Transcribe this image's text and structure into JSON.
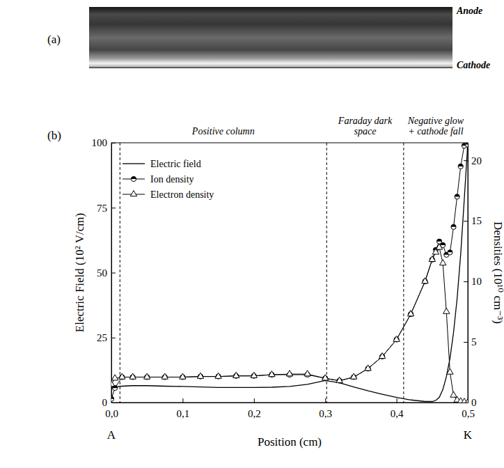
{
  "image_panel": {
    "letter": "(a)",
    "top_label": "Anode",
    "bottom_label": "Cathode"
  },
  "chart_panel": {
    "letter": "(b)"
  },
  "chart_data": {
    "type": "line",
    "xlabel": "Position (cm)",
    "ylabel": "Electric Field (10² V/cm)",
    "y2label": "Densities (10¹⁰ cm⁻³)",
    "xlim": [
      0,
      0.5
    ],
    "xticks": [
      {
        "value": 0,
        "label": "0,0"
      },
      {
        "value": 0.1,
        "label": "0,1"
      },
      {
        "value": 0.2,
        "label": "0,2"
      },
      {
        "value": 0.3,
        "label": "0,3"
      },
      {
        "value": 0.4,
        "label": "0,4"
      },
      {
        "value": 0.5,
        "label": "0,5"
      }
    ],
    "ylim": [
      0,
      100
    ],
    "yticks": [
      0,
      25,
      50,
      75,
      100
    ],
    "y2lim": [
      0,
      21.45
    ],
    "y2ticks": [
      0,
      5,
      10,
      15,
      20
    ],
    "grid": false,
    "legend": "upper left",
    "regions": [
      {
        "label": "Positive column",
        "from": 0.012,
        "to": 0.302
      },
      {
        "label": "Faraday dark space",
        "from": 0.302,
        "to": 0.41
      },
      {
        "label": "Negative glow + cathode fall",
        "from": 0.41,
        "to": 0.5
      }
    ],
    "annotations": [
      {
        "text": "A",
        "x": 0
      },
      {
        "text": "K",
        "x": 0.5
      }
    ],
    "x": [
      0,
      0.005,
      0.015,
      0.03,
      0.05,
      0.075,
      0.1,
      0.125,
      0.15,
      0.175,
      0.2,
      0.225,
      0.25,
      0.275,
      0.3,
      0.32,
      0.34,
      0.36,
      0.38,
      0.4,
      0.42,
      0.44,
      0.45,
      0.455,
      0.46,
      0.465,
      0.47,
      0.475,
      0.48,
      0.485,
      0.49,
      0.495,
      0.5
    ],
    "series": [
      {
        "name": "Electric field",
        "color": "#000000",
        "marker": "none",
        "line_style": "solid",
        "axis": "y",
        "values": [
          5.5,
          6,
          6.3,
          6.5,
          6.5,
          6.3,
          6.2,
          6,
          5.8,
          5.8,
          5.8,
          5.9,
          6.2,
          7,
          8.5,
          7.6,
          6,
          4.5,
          3.2,
          2,
          1,
          0.4,
          0.4,
          0.8,
          2,
          5,
          10,
          17,
          27,
          40,
          57,
          78,
          100
        ]
      },
      {
        "name": "Ion density",
        "color": "#000000",
        "marker": "circle",
        "line_style": "solid",
        "axis": "y2",
        "values": [
          0.3,
          1.2,
          2.1,
          2.1,
          2.1,
          2.1,
          2.1,
          2.15,
          2.15,
          2.2,
          2.2,
          2.3,
          2.3,
          2.3,
          2,
          1.8,
          2.1,
          2.8,
          3.8,
          5.2,
          7.3,
          10,
          11.8,
          12.6,
          13.3,
          13,
          12.2,
          12.4,
          14.5,
          17,
          19.5,
          21.2,
          21.3
        ]
      },
      {
        "name": "Electron density",
        "color": "#000000",
        "marker": "triangle",
        "line_style": "solid",
        "axis": "y2",
        "values": [
          1.5,
          2,
          2.1,
          2.1,
          2.1,
          2.1,
          2.1,
          2.15,
          2.15,
          2.2,
          2.2,
          2.3,
          2.35,
          2.35,
          2,
          1.8,
          2.1,
          2.8,
          3.8,
          5.2,
          7.3,
          10,
          11.8,
          12.4,
          12.8,
          11.5,
          7.5,
          2.5,
          0.6,
          0.2,
          0.1,
          0.05,
          0
        ]
      }
    ]
  }
}
